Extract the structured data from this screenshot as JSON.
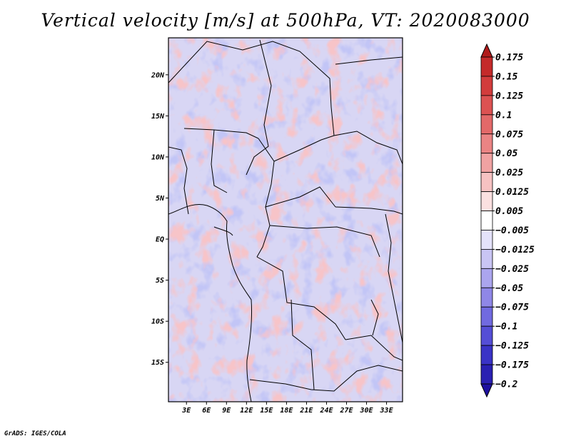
{
  "title": "Vertical velocity [m/s] at 500hPa, VT: 2020083000",
  "credit": "GrADS: IGES/COLA",
  "chart_data": {
    "type": "heatmap",
    "title": "Vertical velocity [m/s] at 500hPa, VT: 2020083000",
    "variable": "Vertical velocity",
    "units": "m/s",
    "level": "500hPa",
    "valid_time": "2020083000",
    "x_ticks": [
      {
        "value": 3,
        "label": "3E"
      },
      {
        "value": 6,
        "label": "6E"
      },
      {
        "value": 9,
        "label": "9E"
      },
      {
        "value": 12,
        "label": "12E"
      },
      {
        "value": 15,
        "label": "15E"
      },
      {
        "value": 18,
        "label": "18E"
      },
      {
        "value": 21,
        "label": "21E"
      },
      {
        "value": 24,
        "label": "24E"
      },
      {
        "value": 27,
        "label": "27E"
      },
      {
        "value": 30,
        "label": "30E"
      },
      {
        "value": 33,
        "label": "33E"
      }
    ],
    "y_ticks": [
      {
        "value": 20,
        "label": "20N"
      },
      {
        "value": 15,
        "label": "15N"
      },
      {
        "value": 10,
        "label": "10N"
      },
      {
        "value": 5,
        "label": "5N"
      },
      {
        "value": 0,
        "label": "EQ"
      },
      {
        "value": -5,
        "label": "5S"
      },
      {
        "value": -10,
        "label": "10S"
      },
      {
        "value": -15,
        "label": "15S"
      }
    ],
    "xlim": [
      0.3,
      35.4
    ],
    "ylim": [
      -19.8,
      24.5
    ],
    "colorbar": {
      "levels": [
        "0.175",
        "0.15",
        "0.125",
        "0.1",
        "0.075",
        "0.05",
        "0.025",
        "0.0125",
        "0.005",
        "-0.005",
        "-0.0125",
        "-0.025",
        "-0.05",
        "-0.075",
        "-0.1",
        "-0.125",
        "-0.175",
        "-0.2"
      ],
      "colors": [
        "#b01a1a",
        "#c42a2a",
        "#d23c3c",
        "#dc5252",
        "#e36969",
        "#ea8484",
        "#f0a2a2",
        "#f6c2c2",
        "#fbe0e0",
        "#ffffff",
        "#e4e2fa",
        "#c9c5f4",
        "#aba5ee",
        "#8f87e7",
        "#716ae0",
        "#554ed6",
        "#3a33c6",
        "#2a20b2",
        "#1e10a0"
      ],
      "extend": "both"
    }
  }
}
